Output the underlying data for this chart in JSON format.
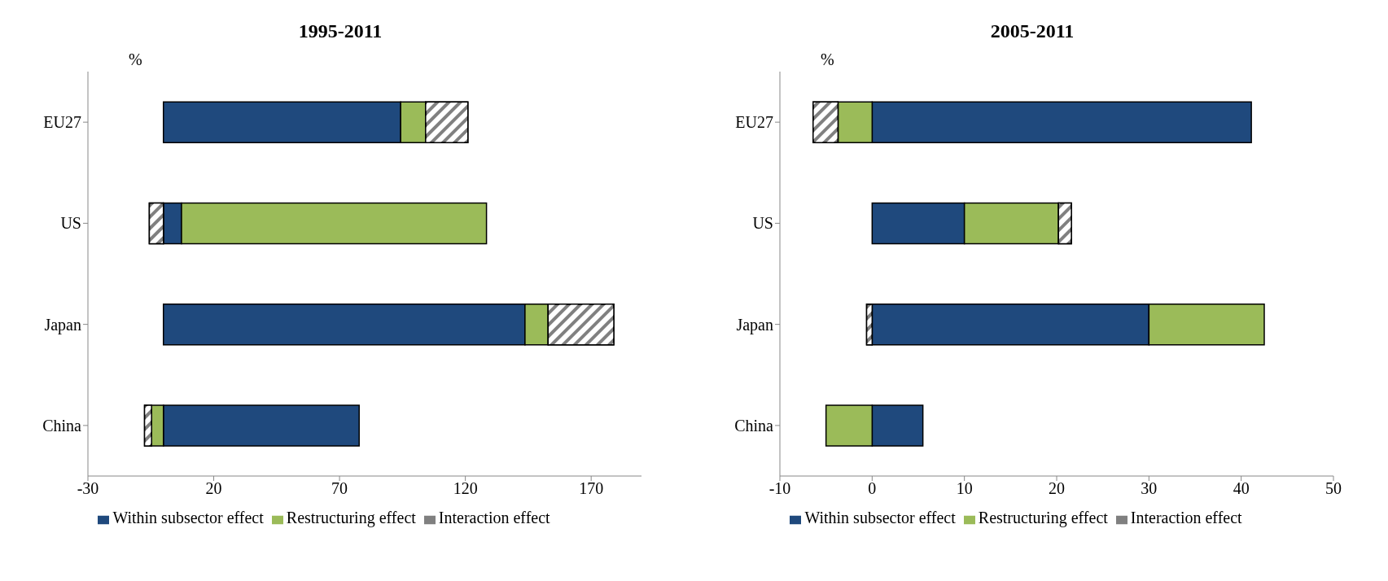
{
  "chart_data": [
    {
      "type": "bar",
      "title": "1995-2011",
      "xlabel": "%",
      "orientation": "horizontal",
      "stacked": true,
      "categories": [
        "EU27",
        "US",
        "Japan",
        "China"
      ],
      "series": [
        {
          "name": "Within subsector effect",
          "color": "#1f497d",
          "values": [
            94.3,
            7.2,
            143.7,
            77.8
          ]
        },
        {
          "name": "Restructuring effect",
          "color": "#9bbb59",
          "values": [
            9.9,
            121.2,
            9.2,
            -4.7
          ]
        },
        {
          "name": "Interaction effect",
          "color": "#808080",
          "values": [
            16.8,
            -5.6,
            26.1,
            -2.8
          ]
        }
      ],
      "xlim": [
        -30,
        190
      ],
      "xticks": [
        -30,
        20,
        70,
        120,
        170
      ],
      "grid": false,
      "legend": "bottom"
    },
    {
      "type": "bar",
      "title": "2005-2011",
      "xlabel": "%",
      "orientation": "horizontal",
      "stacked": true,
      "categories": [
        "EU27",
        "US",
        "Japan",
        "China"
      ],
      "series": [
        {
          "name": "Within subsector effect",
          "color": "#1f497d",
          "values": [
            41.1,
            10.0,
            30.0,
            5.5
          ]
        },
        {
          "name": "Restructuring effect",
          "color": "#9bbb59",
          "values": [
            -3.7,
            10.2,
            12.5,
            -5.0
          ]
        },
        {
          "name": "Interaction effect",
          "color": "#808080",
          "values": [
            -2.7,
            1.4,
            -0.6,
            0
          ]
        }
      ],
      "xlim": [
        -10,
        50
      ],
      "xticks": [
        -10,
        0,
        10,
        20,
        30,
        40,
        50
      ],
      "grid": false,
      "legend": "bottom"
    }
  ]
}
